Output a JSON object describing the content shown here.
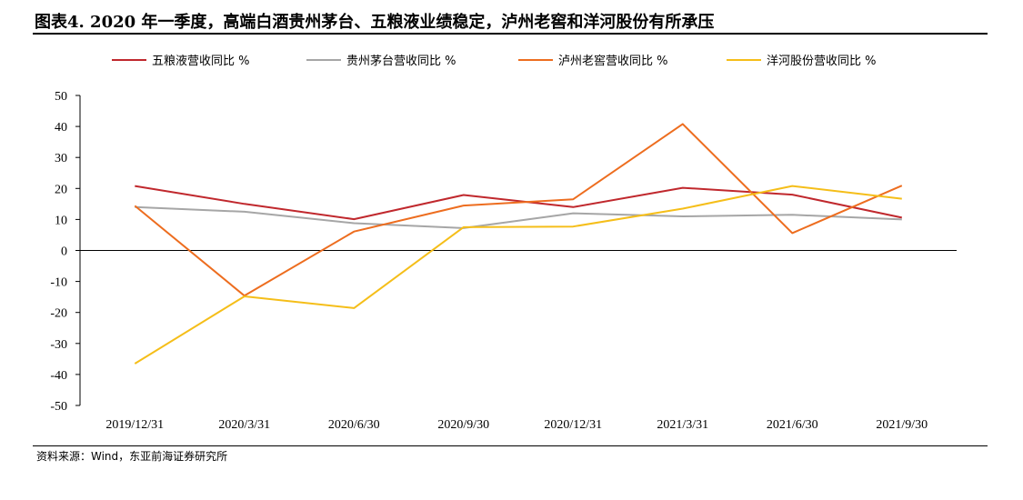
{
  "figure": {
    "title": "图表4.   2020 年一季度，高端白酒贵州茅台、五粮液业绩稳定，泸州老窖和洋河股份有所承压",
    "source": "资料来源：Wind，东亚前海证券研究所"
  },
  "chart_data": {
    "type": "line",
    "title": "",
    "xlabel": "",
    "ylabel": "",
    "categories": [
      "2019/12/31",
      "2020/3/31",
      "2020/6/30",
      "2020/9/30",
      "2020/12/31",
      "2021/3/31",
      "2021/6/30",
      "2021/9/30"
    ],
    "ylim": [
      -50,
      50
    ],
    "yticks": [
      50,
      40,
      30,
      20,
      10,
      0,
      -10,
      -20,
      -30,
      -40,
      -50
    ],
    "grid": false,
    "legend_position": "top",
    "series": [
      {
        "name": "五粮液营收同比 %",
        "color": "#C0282D",
        "values": [
          20.8,
          15.0,
          10.1,
          17.9,
          14.0,
          20.2,
          18.0,
          10.6
        ]
      },
      {
        "name": "贵州茅台营收同比 %",
        "color": "#A6A6A6",
        "values": [
          14.0,
          12.5,
          8.8,
          7.2,
          12.0,
          11.0,
          11.5,
          10.0
        ]
      },
      {
        "name": "泸州老窖营收同比 %",
        "color": "#ED6D1F",
        "values": [
          14.4,
          -14.6,
          6.1,
          14.5,
          16.5,
          40.8,
          5.6,
          20.9
        ]
      },
      {
        "name": "洋河股份营收同比 %",
        "color": "#F5BE19",
        "values": [
          -36.5,
          -14.8,
          -18.6,
          7.5,
          7.7,
          13.5,
          20.8,
          16.7
        ]
      }
    ]
  }
}
